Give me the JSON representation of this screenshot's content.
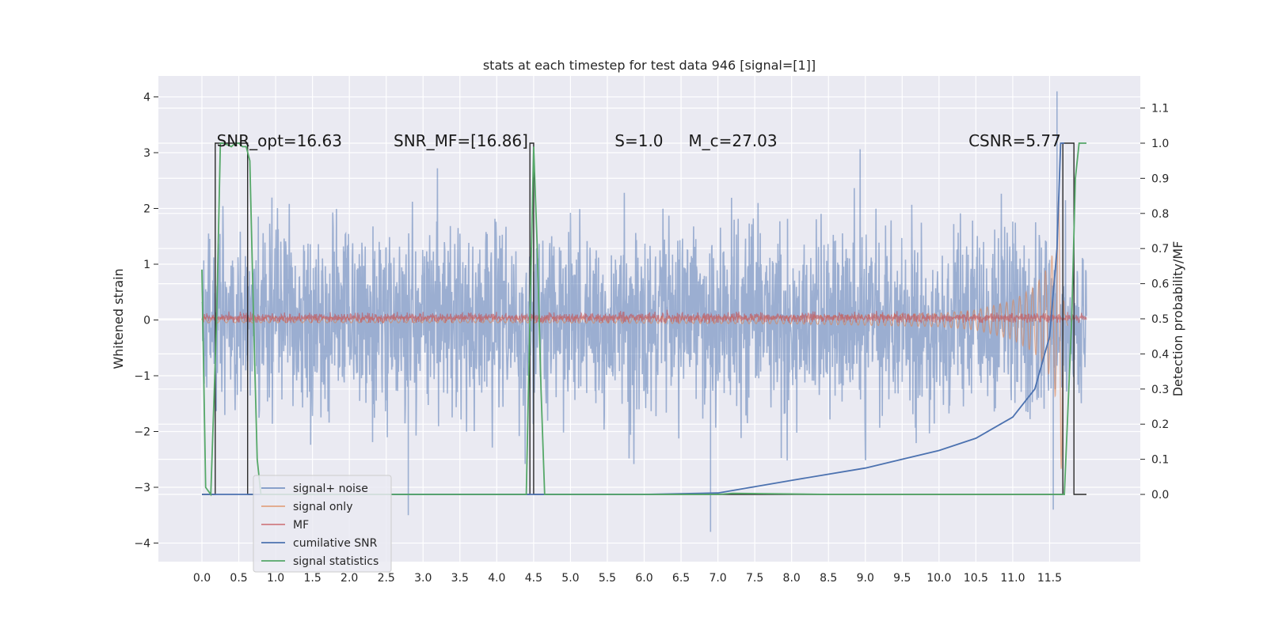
{
  "chart_data": {
    "type": "line",
    "title": "stats at each timestep for test data 946 [signal=[1]]",
    "ylabel_left": "Whitened strain",
    "ylabel_right": "Detection probability/MF",
    "xlim": [
      -0.5,
      12.6
    ],
    "ylim_left": [
      -4.2,
      4.4
    ],
    "ylim_right": [
      -0.2,
      1.2
    ],
    "x_ticks": [
      "0.0",
      "0.5",
      "1.0",
      "1.5",
      "2.0",
      "2.5",
      "3.0",
      "3.5",
      "4.0",
      "4.5",
      "5.0",
      "5.5",
      "6.0",
      "6.5",
      "7.0",
      "7.5",
      "8.0",
      "8.5",
      "9.0",
      "9.5",
      "10.0",
      "10.5",
      "11.0",
      "11.5"
    ],
    "y_ticks_left": [
      "4",
      "3",
      "2",
      "1",
      "0",
      "−1",
      "−2",
      "−3",
      "−4"
    ],
    "y_ticks_right": [
      "1.1",
      "1.0",
      "0.9",
      "0.8",
      "0.7",
      "0.6",
      "0.5",
      "0.4",
      "0.3",
      "0.2",
      "0.1",
      "0.0"
    ],
    "grid": true,
    "legend_position": "lower-left",
    "annotations": [
      {
        "text": "SNR_opt=16.63",
        "x": 0.2
      },
      {
        "text": "SNR_MF=[16.86]",
        "x": 2.6
      },
      {
        "text": "S=1.0",
        "x": 5.6
      },
      {
        "text": "M_c=27.03",
        "x": 6.6
      },
      {
        "text": "CSNR=5.77",
        "x": 10.4
      }
    ],
    "series": [
      {
        "name": "signal+ noise",
        "color": "#4c72b0",
        "axis": "left",
        "style": "dense noise, alpha 0.5",
        "x_range": [
          0.0,
          12.0
        ],
        "envelope": [
          -3.5,
          4.1
        ],
        "peaks": [
          {
            "x": 11.6,
            "y": 4.1
          },
          {
            "x": 6.9,
            "y": -3.8
          },
          {
            "x": 2.8,
            "y": -3.5
          },
          {
            "x": 11.55,
            "y": -3.4
          }
        ]
      },
      {
        "name": "signal only",
        "color": "#dd8452",
        "axis": "left",
        "style": "chirp, alpha 0.5",
        "x": [
          0.0,
          2.0,
          4.0,
          6.0,
          8.0,
          10.0,
          10.5,
          11.0,
          11.3,
          11.5,
          11.6,
          11.65,
          11.7
        ],
        "amplitude": [
          0.05,
          0.05,
          0.05,
          0.06,
          0.07,
          0.12,
          0.18,
          0.35,
          0.6,
          1.0,
          1.5,
          3.3,
          0.1
        ]
      },
      {
        "name": "MF",
        "color": "#c44e52",
        "axis": "left",
        "style": "noisy band near 0, alpha 0.6",
        "x_range": [
          0.0,
          12.0
        ],
        "envelope": [
          -0.05,
          0.25
        ]
      },
      {
        "name": "cumilative SNR",
        "color": "#4c72b0",
        "axis": "right",
        "x": [
          0.0,
          6.0,
          7.0,
          8.0,
          9.0,
          10.0,
          10.5,
          11.0,
          11.3,
          11.5,
          11.6,
          11.65,
          11.7
        ],
        "y": [
          0.0,
          0.0,
          0.004,
          0.04,
          0.075,
          0.125,
          0.16,
          0.22,
          0.3,
          0.45,
          0.7,
          1.0,
          1.0
        ]
      },
      {
        "name": "signal statistics",
        "color": "#55a868",
        "axis": "right",
        "x": [
          0.0,
          0.05,
          0.12,
          0.2,
          0.25,
          0.3,
          0.4,
          0.45,
          0.5,
          0.55,
          0.6,
          0.65,
          0.7,
          0.75,
          0.8,
          4.4,
          4.45,
          4.5,
          4.55,
          4.6,
          4.65,
          7.0,
          7.2,
          8.5,
          11.7,
          11.8,
          11.85,
          11.9,
          12.0
        ],
        "y": [
          0.64,
          0.02,
          0.0,
          0.5,
          1.0,
          1.0,
          0.99,
          1.0,
          1.0,
          0.99,
          0.99,
          0.95,
          0.5,
          0.1,
          0.0,
          0.0,
          0.5,
          0.99,
          0.7,
          0.3,
          0.0,
          0.0,
          0.003,
          0.0,
          0.0,
          0.5,
          0.9,
          1.0,
          1.0
        ]
      },
      {
        "name": "",
        "color": "#2b2b2b",
        "axis": "right",
        "style": "detection boxes",
        "x": [
          0.0,
          0.18,
          0.18,
          0.62,
          0.62,
          4.45,
          4.45,
          4.5,
          4.5,
          11.68,
          11.68,
          11.83,
          11.83,
          12.0
        ],
        "y": [
          0.0,
          0.0,
          1.0,
          1.0,
          0.0,
          0.0,
          1.0,
          1.0,
          0.0,
          0.0,
          1.0,
          1.0,
          0.0,
          0.0
        ]
      }
    ]
  }
}
